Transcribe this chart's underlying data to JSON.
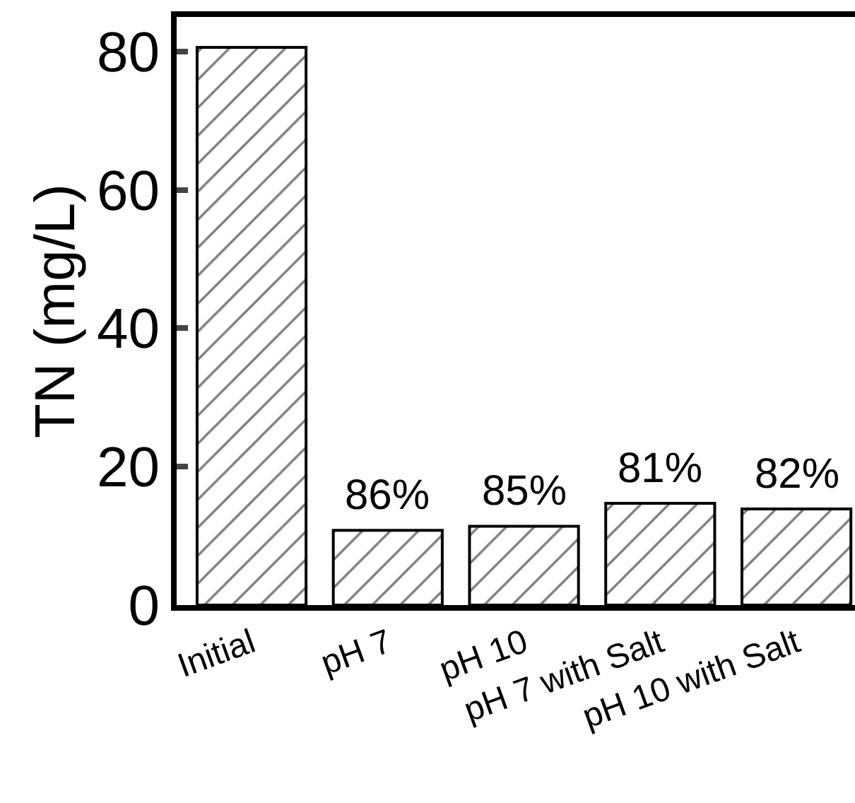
{
  "chart_data": {
    "type": "bar",
    "ylabel": "TN (mg/L)",
    "categories": [
      "Initial",
      "pH 7",
      "pH 10",
      "pH 7 with Salt",
      "pH 10 with Salt"
    ],
    "values": [
      80.6,
      10.8,
      11.4,
      14.7,
      13.9
    ],
    "annotations": [
      {
        "text": "86%",
        "x": "pH 7",
        "y": 10.8
      },
      {
        "text": "85%",
        "x": "pH 10",
        "y": 11.4
      },
      {
        "text": "81%",
        "x": "pH 7 with Salt",
        "y": 14.7
      },
      {
        "text": "82%",
        "x": "pH 10 with Salt",
        "y": 13.9
      }
    ],
    "ylim": [
      0,
      85
    ],
    "yticks": [
      0,
      20,
      40,
      60,
      80
    ]
  }
}
